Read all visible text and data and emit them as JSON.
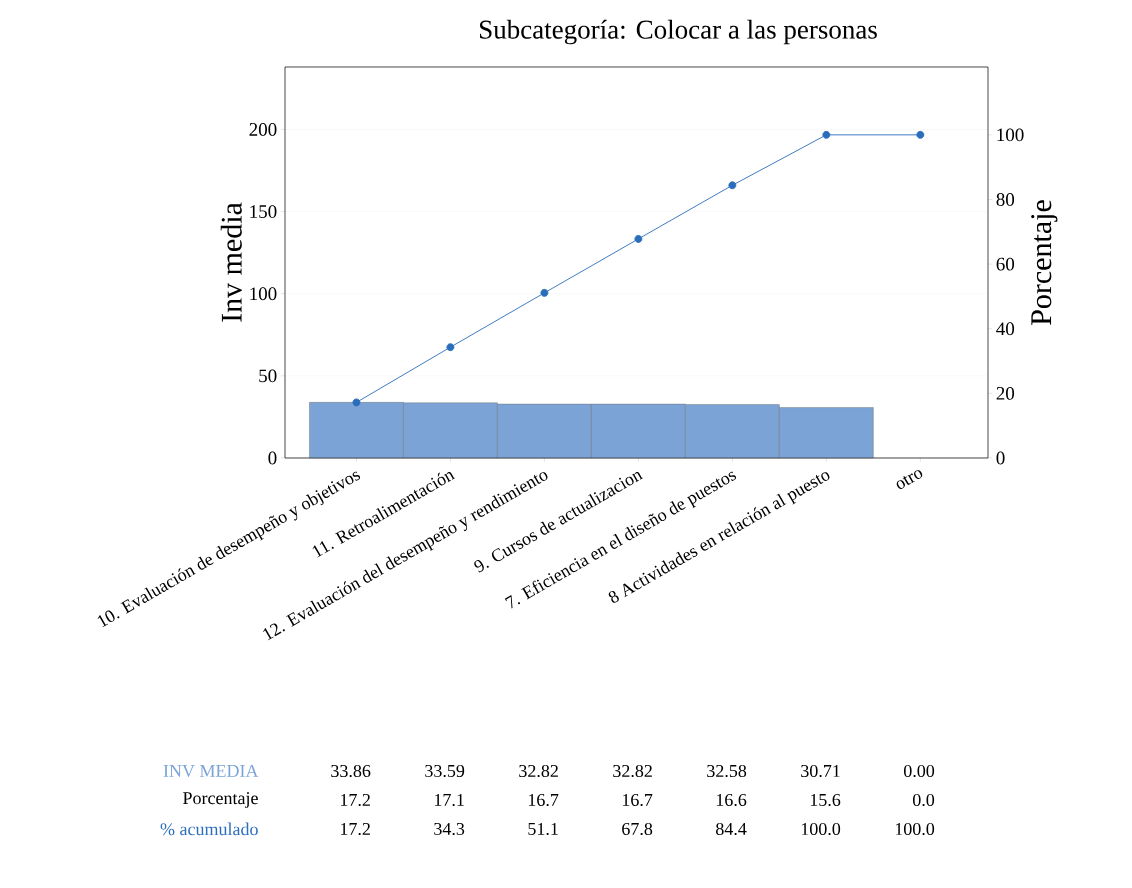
{
  "chart_data": {
    "type": "bar",
    "title": "Subcategoría: Colocar a las personas",
    "ylabel": "Inv media",
    "y2label": "Porcentaje",
    "categories": [
      "10. Evaluación de desempeño y objetivos",
      "11. Retroalimentación",
      "12. Evaluación del desempeño y rendimiento",
      "9. Cursos de actualizacion",
      "7. Eficiencia en el diseño de puestos",
      "8 Actividades en relación al puesto",
      "otro"
    ],
    "series": [
      {
        "name": "INV MEDIA",
        "color": "#7ba3d6",
        "values": [
          33.86,
          33.59,
          32.82,
          32.82,
          32.58,
          30.71,
          0.0
        ],
        "value_labels": [
          "33.86",
          "33.59",
          "32.82",
          "32.82",
          "32.58",
          "30.71",
          "0.00"
        ]
      },
      {
        "name": "% acumulado",
        "type": "line",
        "axis": "y2",
        "color": "#2a6ebb",
        "values": [
          17.2,
          34.3,
          51.1,
          67.8,
          84.4,
          100.0,
          100.0
        ],
        "value_labels": [
          "17.2",
          "34.3",
          "51.1",
          "67.8",
          "84.4",
          "100.0",
          "100.0"
        ]
      }
    ],
    "annotations": [
      "Porcentaje",
      "17.2",
      "17.1",
      "16.7",
      "16.7",
      "16.6",
      "15.6",
      "0.0"
    ],
    "ylim": [
      0,
      238
    ],
    "yticks": [
      0,
      50,
      100,
      150,
      200
    ],
    "y2lim": [
      0,
      121
    ],
    "y2ticks": [
      0,
      20,
      40,
      60,
      80,
      100
    ],
    "grid": "y",
    "marker": "circle"
  }
}
